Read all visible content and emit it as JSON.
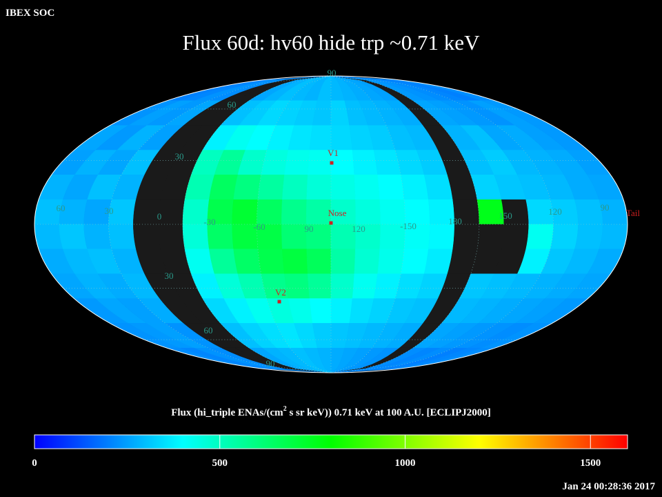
{
  "chart_data": {
    "type": "heatmap",
    "header": "IBEX SOC",
    "title": "Flux   60d: hv60 hide trp ~0.71 keV",
    "projection": "mollweide",
    "colorbar_label": [
      "Flux (hi_triple ENAs/(cm",
      "2",
      " s sr keV))  0.71 keV at 100 A.U. [ECLIPJ2000]"
    ],
    "timestamp": "Jan 24 00:28:36 2017",
    "zlim": [
      0,
      1600
    ],
    "zticks": [
      0,
      500,
      1000,
      1500
    ],
    "colormap": [
      "#0000ff",
      "#0080ff",
      "#00ffff",
      "#00ff80",
      "#00ff00",
      "#80ff00",
      "#ffff00",
      "#ff8000",
      "#ff0000"
    ],
    "null_color": "#1a1a1a",
    "grid": true,
    "grid_labels": [
      "60",
      "30",
      "0",
      "-30",
      "-60",
      "90",
      "120",
      "-150",
      "180",
      "150",
      "120",
      "90",
      "90",
      "60",
      "30",
      "30",
      "60",
      "90"
    ],
    "markers": [
      "V1",
      "Nose",
      "V2",
      "Tail"
    ],
    "values": [
      [
        200,
        210,
        230,
        220,
        null,
        null,
        260,
        280,
        300,
        290,
        280,
        300,
        290,
        280,
        270,
        260,
        250,
        null,
        240,
        230,
        220,
        210,
        200,
        220
      ],
      [
        230,
        250,
        240,
        260,
        null,
        null,
        300,
        320,
        340,
        330,
        320,
        310,
        330,
        300,
        290,
        280,
        270,
        null,
        260,
        250,
        240,
        230,
        250,
        240
      ],
      [
        260,
        240,
        280,
        250,
        null,
        null,
        380,
        420,
        400,
        380,
        360,
        350,
        340,
        330,
        320,
        300,
        290,
        null,
        280,
        300,
        260,
        270,
        250,
        240
      ],
      [
        250,
        280,
        260,
        300,
        null,
        null,
        500,
        560,
        480,
        450,
        430,
        420,
        400,
        380,
        360,
        340,
        320,
        null,
        300,
        320,
        290,
        280,
        270,
        250
      ],
      [
        280,
        260,
        300,
        280,
        null,
        null,
        520,
        650,
        600,
        550,
        500,
        460,
        440,
        420,
        400,
        380,
        350,
        null,
        330,
        310,
        300,
        290,
        270,
        260
      ],
      [
        300,
        280,
        260,
        310,
        null,
        null,
        480,
        680,
        720,
        650,
        580,
        540,
        480,
        450,
        420,
        400,
        380,
        null,
        760,
        null,
        340,
        320,
        300,
        280
      ],
      [
        290,
        310,
        280,
        300,
        null,
        null,
        460,
        640,
        700,
        690,
        620,
        600,
        520,
        480,
        440,
        410,
        390,
        null,
        null,
        null,
        420,
        330,
        300,
        290
      ],
      [
        270,
        290,
        300,
        280,
        null,
        null,
        420,
        560,
        640,
        680,
        700,
        660,
        540,
        470,
        430,
        400,
        370,
        null,
        null,
        null,
        380,
        310,
        290,
        270
      ],
      [
        260,
        280,
        270,
        290,
        null,
        null,
        380,
        460,
        520,
        580,
        600,
        560,
        480,
        420,
        380,
        350,
        330,
        null,
        310,
        300,
        290,
        280,
        270,
        260
      ],
      [
        240,
        260,
        250,
        270,
        null,
        null,
        340,
        380,
        420,
        450,
        430,
        400,
        380,
        350,
        330,
        310,
        300,
        null,
        290,
        280,
        270,
        260,
        250,
        240
      ],
      [
        230,
        240,
        250,
        230,
        null,
        null,
        300,
        330,
        350,
        360,
        340,
        320,
        310,
        300,
        290,
        280,
        270,
        null,
        260,
        250,
        240,
        230,
        220,
        230
      ],
      [
        220,
        210,
        230,
        220,
        null,
        null,
        260,
        280,
        290,
        300,
        290,
        280,
        270,
        260,
        250,
        240,
        230,
        null,
        220,
        210,
        220,
        200,
        210,
        220
      ]
    ]
  }
}
